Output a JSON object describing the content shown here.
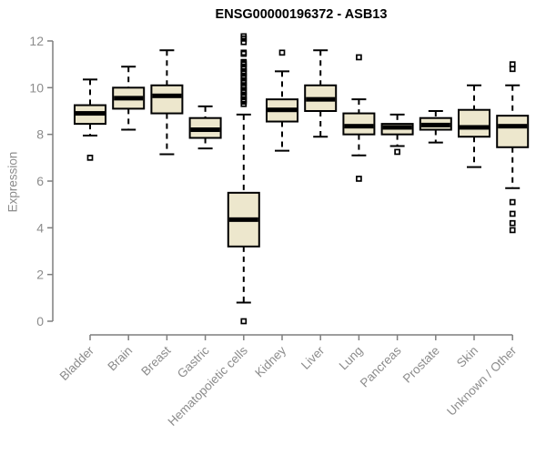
{
  "chart_data": {
    "type": "boxplot",
    "title": "ENSG00000196372 - ASB13",
    "ylabel": "Expression",
    "xlabel": "",
    "ylim": [
      0,
      12
    ],
    "yticks": [
      0,
      2,
      4,
      6,
      8,
      10,
      12
    ],
    "grid": false,
    "legend": "none",
    "categories": [
      "Bladder",
      "Brain",
      "Breast",
      "Gastric",
      "Hematopoietic cells",
      "Kidney",
      "Liver",
      "Lung",
      "Pancreas",
      "Prostate",
      "Skin",
      "Unknown / Other"
    ],
    "series": [
      {
        "name": "Bladder",
        "whisker_low": 7.95,
        "q1": 8.45,
        "median": 8.9,
        "q3": 9.25,
        "whisker_high": 10.35,
        "outliers": [
          7.0
        ]
      },
      {
        "name": "Brain",
        "whisker_low": 8.2,
        "q1": 9.1,
        "median": 9.55,
        "q3": 10.0,
        "whisker_high": 10.9,
        "outliers": []
      },
      {
        "name": "Breast",
        "whisker_low": 7.15,
        "q1": 8.9,
        "median": 9.65,
        "q3": 10.1,
        "whisker_high": 11.6,
        "outliers": []
      },
      {
        "name": "Gastric",
        "whisker_low": 7.4,
        "q1": 7.85,
        "median": 8.2,
        "q3": 8.7,
        "whisker_high": 9.2,
        "outliers": []
      },
      {
        "name": "Hematopoietic cells",
        "whisker_low": 0.8,
        "q1": 3.2,
        "median": 4.35,
        "q3": 5.5,
        "whisker_high": 8.85,
        "outliers": [
          12.2,
          12.1,
          11.95,
          11.5,
          11.45,
          11.1,
          11.05,
          11.0,
          10.9,
          10.85,
          10.8,
          10.7,
          10.65,
          10.6,
          10.5,
          10.45,
          10.4,
          10.3,
          10.25,
          10.2,
          10.1,
          10.05,
          10.0,
          9.9,
          9.85,
          9.8,
          9.7,
          9.65,
          9.6,
          9.5,
          9.45,
          9.4,
          9.3,
          0.0
        ]
      },
      {
        "name": "Kidney",
        "whisker_low": 7.3,
        "q1": 8.55,
        "median": 9.05,
        "q3": 9.5,
        "whisker_high": 10.7,
        "outliers": [
          11.5
        ]
      },
      {
        "name": "Liver",
        "whisker_low": 7.9,
        "q1": 9.0,
        "median": 9.5,
        "q3": 10.1,
        "whisker_high": 11.6,
        "outliers": []
      },
      {
        "name": "Lung",
        "whisker_low": 7.1,
        "q1": 8.0,
        "median": 8.35,
        "q3": 8.9,
        "whisker_high": 9.5,
        "outliers": [
          11.3,
          6.1
        ]
      },
      {
        "name": "Pancreas",
        "whisker_low": 7.5,
        "q1": 8.0,
        "median": 8.3,
        "q3": 8.45,
        "whisker_high": 8.85,
        "outliers": [
          7.25
        ]
      },
      {
        "name": "Prostate",
        "whisker_low": 7.65,
        "q1": 8.2,
        "median": 8.4,
        "q3": 8.7,
        "whisker_high": 9.0,
        "outliers": []
      },
      {
        "name": "Skin",
        "whisker_low": 6.6,
        "q1": 7.9,
        "median": 8.3,
        "q3": 9.05,
        "whisker_high": 10.1,
        "outliers": []
      },
      {
        "name": "Unknown / Other",
        "whisker_low": 5.7,
        "q1": 7.45,
        "median": 8.35,
        "q3": 8.8,
        "whisker_high": 10.1,
        "outliers": [
          11.0,
          10.8,
          5.1,
          4.6,
          4.2,
          3.9
        ]
      }
    ]
  },
  "colors": {
    "background": "#FFFFFF",
    "box_fill": "#EDE7CD",
    "box_stroke": "#000000",
    "median": "#000000",
    "whisker": "#000000",
    "outlier": "#000000",
    "axis": "#7F7F7F",
    "tick_label": "#8C8C8C",
    "title": "#000000"
  }
}
